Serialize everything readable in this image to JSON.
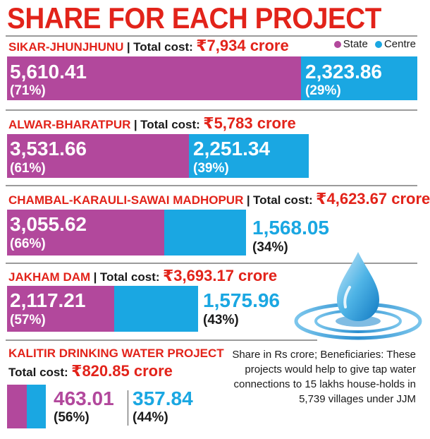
{
  "title": "SHARE FOR EACH PROJECT",
  "legend": {
    "state": "State",
    "centre": "Centre"
  },
  "colors": {
    "state": "#b2489c",
    "centre": "#1aa7e2",
    "accent": "#e2231a"
  },
  "total_cost_label": "Total cost:",
  "pipe": "|",
  "projects": [
    {
      "name": "SIKAR-JHUNJHUNU",
      "total": "₹7,934 crore",
      "state_value": "5,610.41",
      "state_pct": "(71%)",
      "centre_value": "2,323.86",
      "centre_pct": "(29%)"
    },
    {
      "name": "ALWAR-BHARATPUR",
      "total": "₹5,783 crore",
      "state_value": "3,531.66",
      "state_pct": "(61%)",
      "centre_value": "2,251.34",
      "centre_pct": "(39%)"
    },
    {
      "name": "CHAMBAL-KARAULI-SAWAI MADHOPUR",
      "total": "₹4,623.67 crore",
      "state_value": "3,055.62",
      "state_pct": "(66%)",
      "centre_value": "1,568.05",
      "centre_pct": "(34%)"
    },
    {
      "name": "JAKHAM DAM",
      "total": "₹3,693.17 crore",
      "state_value": "2,117.21",
      "state_pct": "(57%)",
      "centre_value": "1,575.96",
      "centre_pct": "(43%)"
    },
    {
      "name": "KALITIR DRINKING WATER PROJECT",
      "total": "₹820.85 crore",
      "state_value": "463.01",
      "state_pct": "(56%)",
      "centre_value": "357.84",
      "centre_pct": "(44%)"
    }
  ],
  "note": "Share in Rs crore; Beneficiaries: These projects would help to give tap water connections to 15 lakhs house-holds in 5,739 villages under JJM",
  "chart_data": {
    "type": "bar",
    "orientation": "horizontal",
    "stacked": true,
    "title": "SHARE FOR EACH PROJECT",
    "unit": "Rs crore",
    "categories": [
      "SIKAR-JHUNJHUNU",
      "ALWAR-BHARATPUR",
      "CHAMBAL-KARAULI-SAWAI MADHOPUR",
      "JAKHAM DAM",
      "KALITIR DRINKING WATER PROJECT"
    ],
    "totals": [
      7934,
      5783,
      4623.67,
      3693.17,
      820.85
    ],
    "series": [
      {
        "name": "State",
        "values": [
          5610.41,
          3531.66,
          3055.62,
          2117.21,
          463.01
        ],
        "percent": [
          71,
          61,
          66,
          57,
          56
        ]
      },
      {
        "name": "Centre",
        "values": [
          2323.86,
          2251.34,
          1568.05,
          1575.96,
          357.84
        ],
        "percent": [
          29,
          39,
          34,
          43,
          44
        ]
      }
    ],
    "legend_position": "top-right",
    "grid": false
  }
}
